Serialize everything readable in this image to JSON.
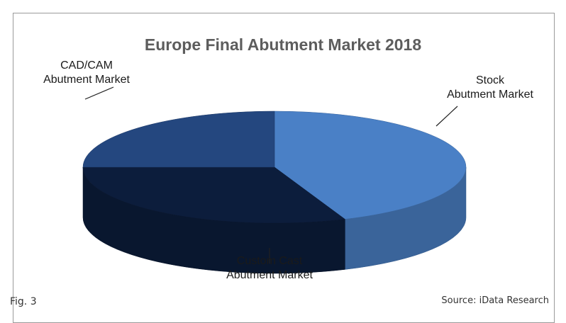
{
  "chart_data": {
    "type": "pie",
    "title": "Europe Final Abutment Market 2018",
    "slices": [
      {
        "label": "CAD/CAM Abutment Market",
        "value": 44,
        "color": "#4a80c6"
      },
      {
        "label": "Stock Abutment Market",
        "value": 31,
        "color": "#0c1d3c"
      },
      {
        "label": "Custom Cast Abutment Market",
        "value": 25,
        "color": "#24477f"
      }
    ],
    "style": "3d",
    "legend": "none"
  },
  "figure_label": "Fig. 3",
  "source": "Source: iData Research"
}
